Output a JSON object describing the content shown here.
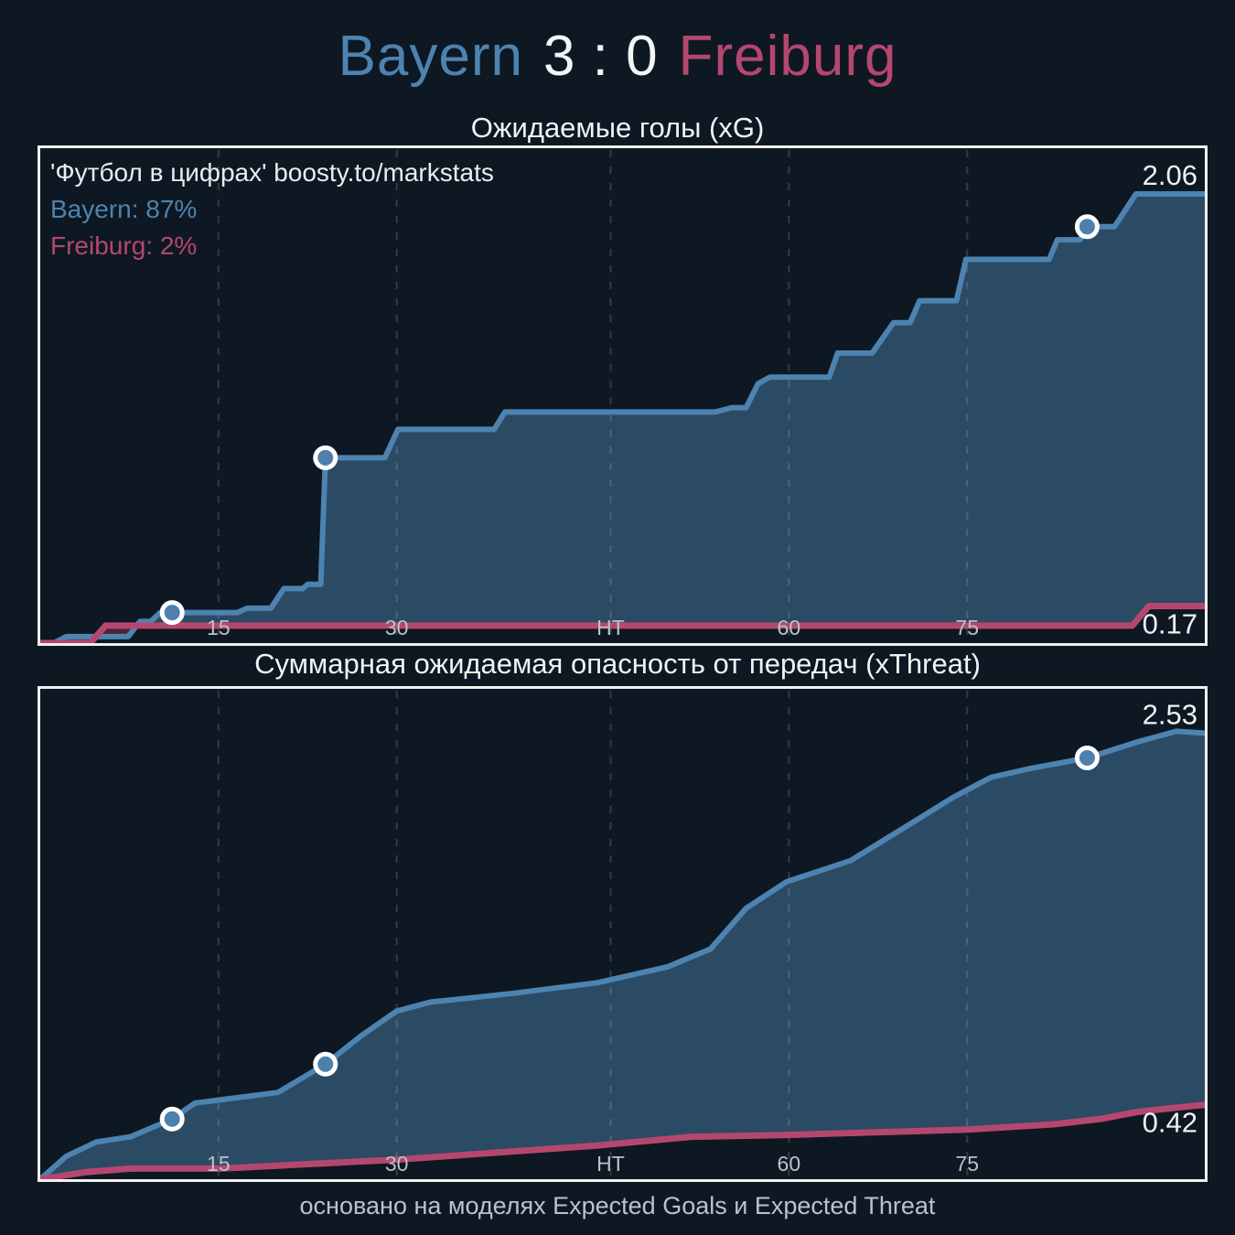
{
  "header": {
    "home_team": "Bayern",
    "score": "3 : 0",
    "away_team": "Freiburg"
  },
  "panel1_annotation": {
    "source": "'Футбол в цифрах' boosty.to/markstats",
    "home_win_prob": "Bayern: 87%",
    "away_win_prob": "Freiburg: 2%"
  },
  "footer": {
    "text": "основано на моделях Expected Goals и Expected Threat"
  },
  "colors": {
    "background": "#0e1822",
    "home": "#4d83b0",
    "away": "#b5476f",
    "home_area_fill": "#2b4a63",
    "away_area_fill": "#4d2336",
    "marker_fill": "#4d80ac",
    "border": "#f0f0f0",
    "grid": "#ffffff",
    "tick_text": "#b9c3cb",
    "value_text": "#eef1f3"
  },
  "chart_data": [
    {
      "type": "area",
      "line_style": "step",
      "title": "Ожидаемые голы (xG)",
      "x_axis": {
        "unit": "match minute (cumulative, HT = 45' + stoppage)",
        "t_max": 98,
        "ticks": [
          {
            "label": "15",
            "t": 15
          },
          {
            "label": "30",
            "t": 30
          },
          {
            "label": "HT",
            "t": 48
          },
          {
            "label": "60",
            "t": 63
          },
          {
            "label": "75",
            "t": 78
          }
        ]
      },
      "ylim": [
        0,
        2.27
      ],
      "grid": "vertical-dashed",
      "legend_position": "none",
      "series": [
        {
          "name": "Bayern",
          "final_label": "2.06",
          "points": [
            [
              0,
              0
            ],
            [
              1.1,
              0
            ],
            [
              2.2,
              0.03
            ],
            [
              7.4,
              0.03
            ],
            [
              8.4,
              0.1
            ],
            [
              9.3,
              0.1
            ],
            [
              10.1,
              0.14
            ],
            [
              16.6,
              0.14
            ],
            [
              17.4,
              0.16
            ],
            [
              19.4,
              0.16
            ],
            [
              20.5,
              0.25
            ],
            [
              22.1,
              0.25
            ],
            [
              22.5,
              0.27
            ],
            [
              23.6,
              0.27
            ],
            [
              24,
              0.85
            ],
            [
              29,
              0.85
            ],
            [
              30.1,
              0.98
            ],
            [
              38.2,
              0.98
            ],
            [
              39.1,
              1.06
            ],
            [
              56.8,
              1.06
            ],
            [
              58.2,
              1.08
            ],
            [
              59.4,
              1.08
            ],
            [
              60.4,
              1.19
            ],
            [
              61.4,
              1.22
            ],
            [
              66.4,
              1.22
            ],
            [
              67.1,
              1.33
            ],
            [
              70,
              1.33
            ],
            [
              71.8,
              1.47
            ],
            [
              73.2,
              1.47
            ],
            [
              74,
              1.57
            ],
            [
              77.1,
              1.57
            ],
            [
              77.9,
              1.76
            ],
            [
              84.9,
              1.76
            ],
            [
              85.6,
              1.85
            ],
            [
              87.5,
              1.85
            ],
            [
              88.1,
              1.91
            ],
            [
              90.4,
              1.91
            ],
            [
              92.2,
              2.06
            ],
            [
              98,
              2.06
            ]
          ]
        },
        {
          "name": "Freiburg",
          "final_label": "0.17",
          "points": [
            [
              0,
              0
            ],
            [
              4.2,
              0
            ],
            [
              5.5,
              0.08
            ],
            [
              91.9,
              0.08
            ],
            [
              93.3,
              0.17
            ],
            [
              98,
              0.17
            ]
          ]
        }
      ],
      "goal_markers": {
        "team": "Bayern",
        "points": [
          [
            11.1,
            0.14
          ],
          [
            24,
            0.85
          ],
          [
            88.1,
            1.91
          ]
        ]
      }
    },
    {
      "type": "area",
      "line_style": "linear",
      "title": "Суммарная ожидаемая опасность от передач (xThreat)",
      "x_axis": {
        "unit": "match minute (cumulative, HT = 45' + stoppage)",
        "t_max": 98,
        "ticks": [
          {
            "label": "15",
            "t": 15
          },
          {
            "label": "30",
            "t": 30
          },
          {
            "label": "HT",
            "t": 48
          },
          {
            "label": "60",
            "t": 63
          },
          {
            "label": "75",
            "t": 78
          }
        ]
      },
      "ylim": [
        0,
        2.77
      ],
      "grid": "vertical-dashed",
      "legend_position": "none",
      "series": [
        {
          "name": "Bayern",
          "final_label": "2.53",
          "points": [
            [
              0,
              0
            ],
            [
              2.2,
              0.13
            ],
            [
              4.7,
              0.21
            ],
            [
              7.6,
              0.24
            ],
            [
              11.1,
              0.34
            ],
            [
              13,
              0.43
            ],
            [
              20,
              0.49
            ],
            [
              24,
              0.65
            ],
            [
              27,
              0.81
            ],
            [
              30,
              0.95
            ],
            [
              32.8,
              1.0
            ],
            [
              39.8,
              1.05
            ],
            [
              46.9,
              1.11
            ],
            [
              52.8,
              1.2
            ],
            [
              56.4,
              1.3
            ],
            [
              59.4,
              1.53
            ],
            [
              62.8,
              1.68
            ],
            [
              68.2,
              1.8
            ],
            [
              72.8,
              1.99
            ],
            [
              76.9,
              2.16
            ],
            [
              80,
              2.27
            ],
            [
              83.3,
              2.32
            ],
            [
              88.1,
              2.38
            ],
            [
              92.3,
              2.47
            ],
            [
              95.6,
              2.53
            ],
            [
              98,
              2.52
            ]
          ]
        },
        {
          "name": "Freiburg",
          "final_label": "0.42",
          "points": [
            [
              0,
              0
            ],
            [
              3.8,
              0.04
            ],
            [
              7.6,
              0.06
            ],
            [
              15.1,
              0.06
            ],
            [
              29.9,
              0.11
            ],
            [
              46.9,
              0.19
            ],
            [
              54.8,
              0.24
            ],
            [
              63,
              0.25
            ],
            [
              78,
              0.28
            ],
            [
              85.3,
              0.31
            ],
            [
              89.2,
              0.34
            ],
            [
              92.3,
              0.38
            ],
            [
              96.4,
              0.41
            ],
            [
              98,
              0.42
            ]
          ]
        }
      ],
      "goal_markers": {
        "team": "Bayern",
        "points": [
          [
            11.1,
            0.34
          ],
          [
            24,
            0.65
          ],
          [
            88.1,
            2.38
          ]
        ]
      }
    }
  ]
}
